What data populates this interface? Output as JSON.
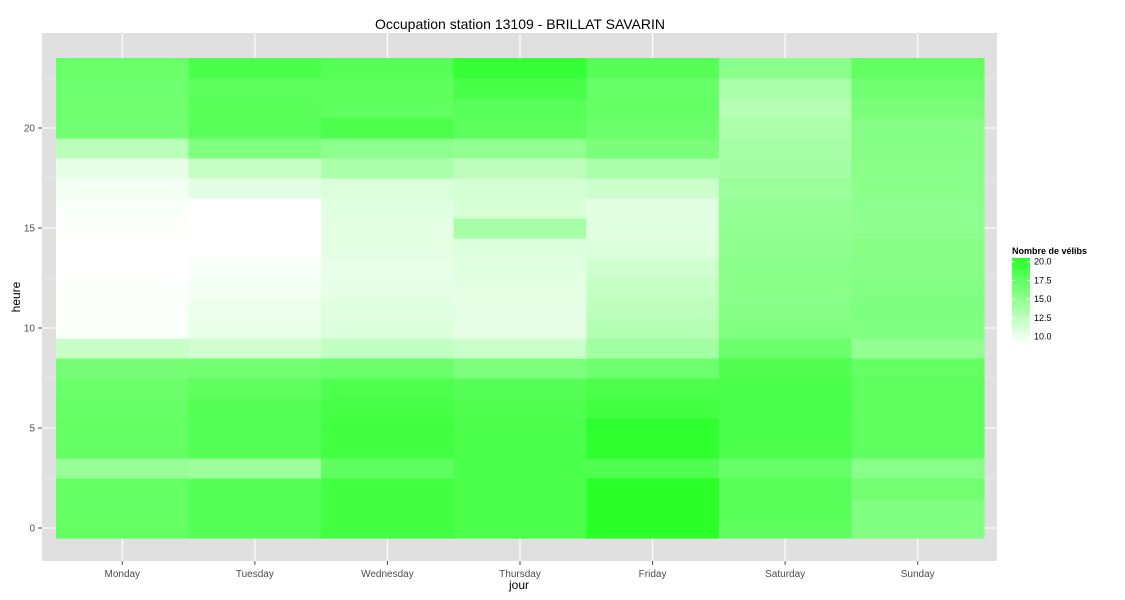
{
  "chart_data": {
    "type": "heatmap",
    "title": "Occupation station 13109 - BRILLAT SAVARIN",
    "xlabel": "jour",
    "ylabel": "heure",
    "x_categories": [
      "Monday",
      "Tuesday",
      "Wednesday",
      "Thursday",
      "Friday",
      "Saturday",
      "Sunday"
    ],
    "y_hours": [
      0,
      1,
      2,
      3,
      4,
      5,
      6,
      7,
      8,
      9,
      10,
      11,
      12,
      13,
      14,
      15,
      16,
      17,
      18,
      19,
      20,
      21,
      22,
      23
    ],
    "y_ticks": [
      0,
      5,
      10,
      15,
      20
    ],
    "ylim": [
      -0.5,
      23.5
    ],
    "grid": true,
    "color_scale": {
      "low": "#ffffff",
      "high": "#2aff2a",
      "min": 9,
      "max": 20.5
    },
    "legend": {
      "title": "Nombre de vélibs",
      "position": "right",
      "breaks": [
        20.0,
        17.5,
        15.0,
        12.5,
        10.0
      ],
      "labels": [
        "20.0",
        "17.5",
        "15.0",
        "12.5",
        "10.0"
      ]
    },
    "values": [
      [
        17.4,
        17.4,
        17.4,
        14.6,
        17.4,
        17.4,
        17.2,
        17.0,
        16.4,
        12.0,
        9.2,
        9.2,
        9.1,
        9.0,
        9.0,
        9.1,
        9.3,
        9.6,
        10.3,
        12.8,
        16.6,
        16.8,
        16.9,
        17.1
      ],
      [
        18.2,
        18.2,
        18.2,
        14.2,
        18.1,
        18.1,
        18.1,
        17.6,
        16.6,
        11.5,
        10.2,
        9.9,
        9.6,
        9.3,
        9.0,
        9.0,
        9.0,
        10.5,
        12.0,
        15.8,
        17.9,
        17.9,
        17.8,
        18.8
      ],
      [
        19.2,
        19.2,
        19.2,
        17.6,
        19.2,
        19.2,
        19.0,
        18.5,
        17.0,
        12.3,
        10.9,
        10.6,
        10.3,
        10.2,
        10.4,
        10.4,
        10.6,
        11.0,
        13.6,
        15.1,
        18.6,
        17.6,
        17.8,
        18.2
      ],
      [
        18.7,
        18.7,
        18.7,
        18.6,
        18.7,
        18.6,
        18.4,
        18.1,
        16.0,
        11.9,
        10.3,
        10.3,
        10.4,
        10.6,
        10.9,
        13.8,
        11.2,
        11.3,
        12.5,
        14.9,
        17.8,
        18.0,
        18.9,
        19.9
      ],
      [
        20.5,
        20.5,
        20.5,
        18.5,
        20.3,
        20.3,
        19.2,
        18.7,
        16.9,
        14.0,
        13.0,
        12.5,
        12.2,
        11.6,
        11.0,
        10.6,
        10.5,
        11.8,
        13.6,
        16.1,
        17.0,
        17.4,
        17.2,
        18.1
      ],
      [
        17.7,
        18.0,
        18.0,
        17.2,
        18.7,
        18.7,
        18.8,
        18.7,
        18.4,
        16.9,
        15.8,
        15.5,
        15.3,
        15.3,
        15.1,
        14.9,
        14.7,
        14.4,
        13.9,
        13.8,
        13.5,
        13.0,
        13.6,
        15.3
      ],
      [
        15.8,
        15.8,
        16.6,
        15.4,
        17.7,
        17.7,
        17.7,
        17.6,
        17.4,
        14.9,
        15.8,
        15.9,
        15.7,
        15.5,
        15.5,
        15.1,
        15.1,
        15.3,
        15.4,
        15.5,
        15.6,
        16.1,
        16.7,
        17.4
      ]
    ]
  }
}
